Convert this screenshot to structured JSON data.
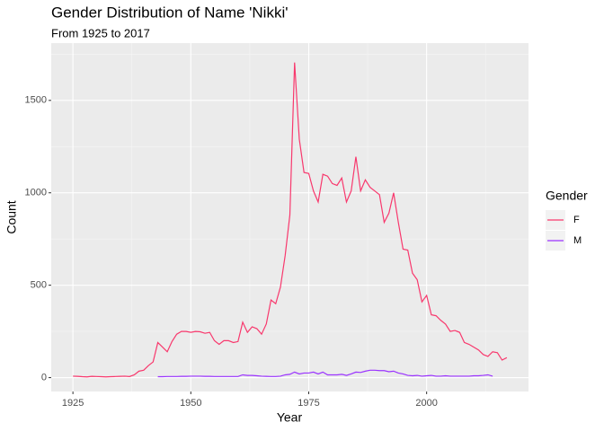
{
  "chart_data": {
    "type": "line",
    "title": "Gender Distribution of Name 'Nikki'",
    "subtitle": "From 1925 to 2017",
    "x_label": "Year",
    "y_label": "Count",
    "legend_title": "Gender",
    "legend_position": "right",
    "x": [
      1925,
      1926,
      1927,
      1928,
      1929,
      1930,
      1931,
      1932,
      1933,
      1934,
      1935,
      1936,
      1937,
      1938,
      1939,
      1940,
      1941,
      1942,
      1943,
      1944,
      1945,
      1946,
      1947,
      1948,
      1949,
      1950,
      1951,
      1952,
      1953,
      1954,
      1955,
      1956,
      1957,
      1958,
      1959,
      1960,
      1961,
      1962,
      1963,
      1964,
      1965,
      1966,
      1967,
      1968,
      1969,
      1970,
      1971,
      1972,
      1973,
      1974,
      1975,
      1976,
      1977,
      1978,
      1979,
      1980,
      1981,
      1982,
      1983,
      1984,
      1985,
      1986,
      1987,
      1988,
      1989,
      1990,
      1991,
      1992,
      1993,
      1994,
      1995,
      1996,
      1997,
      1998,
      1999,
      2000,
      2001,
      2002,
      2003,
      2004,
      2005,
      2006,
      2007,
      2008,
      2009,
      2010,
      2011,
      2012,
      2013,
      2014,
      2015,
      2016,
      2017
    ],
    "series": [
      {
        "name": "F",
        "color": "#f8386d",
        "values": [
          8,
          7,
          5,
          4,
          7,
          6,
          5,
          4,
          5,
          6,
          7,
          8,
          6,
          15,
          35,
          40,
          65,
          85,
          190,
          165,
          140,
          195,
          235,
          250,
          250,
          245,
          250,
          248,
          240,
          245,
          200,
          180,
          200,
          200,
          190,
          195,
          300,
          245,
          275,
          265,
          235,
          290,
          420,
          400,
          490,
          660,
          880,
          1705,
          1290,
          1110,
          1105,
          1010,
          950,
          1100,
          1090,
          1050,
          1040,
          1080,
          950,
          1010,
          1195,
          1010,
          1070,
          1030,
          1010,
          990,
          840,
          890,
          1000,
          840,
          695,
          690,
          565,
          530,
          410,
          445,
          340,
          335,
          310,
          290,
          250,
          255,
          245,
          190,
          180,
          165,
          150,
          125,
          115,
          140,
          135,
          95,
          108
        ]
      },
      {
        "name": "M",
        "color": "#9b33ff",
        "values": [
          null,
          null,
          null,
          null,
          null,
          null,
          null,
          null,
          null,
          null,
          null,
          null,
          null,
          null,
          null,
          null,
          null,
          null,
          5,
          5,
          6,
          6,
          6,
          7,
          7,
          8,
          8,
          8,
          7,
          7,
          6,
          6,
          6,
          6,
          6,
          6,
          15,
          12,
          12,
          10,
          8,
          7,
          6,
          6,
          8,
          15,
          18,
          30,
          20,
          25,
          25,
          30,
          20,
          30,
          15,
          15,
          15,
          18,
          12,
          20,
          30,
          28,
          35,
          40,
          40,
          38,
          38,
          32,
          35,
          25,
          20,
          12,
          10,
          12,
          8,
          10,
          12,
          8,
          8,
          10,
          8,
          8,
          8,
          8,
          8,
          10,
          10,
          12,
          15,
          8,
          null,
          null,
          null
        ]
      }
    ],
    "xlim": [
      1920.4,
      2021.6
    ],
    "xticks": [
      1925,
      1950,
      1975,
      2000
    ],
    "xminor": [
      1937.5,
      1962.5,
      1987.5,
      2012.5
    ],
    "ylim": [
      -75,
      1810
    ],
    "yticks": [
      0,
      500,
      1000,
      1500
    ],
    "yminor": [
      250,
      750,
      1250,
      1750
    ],
    "grid": true
  }
}
